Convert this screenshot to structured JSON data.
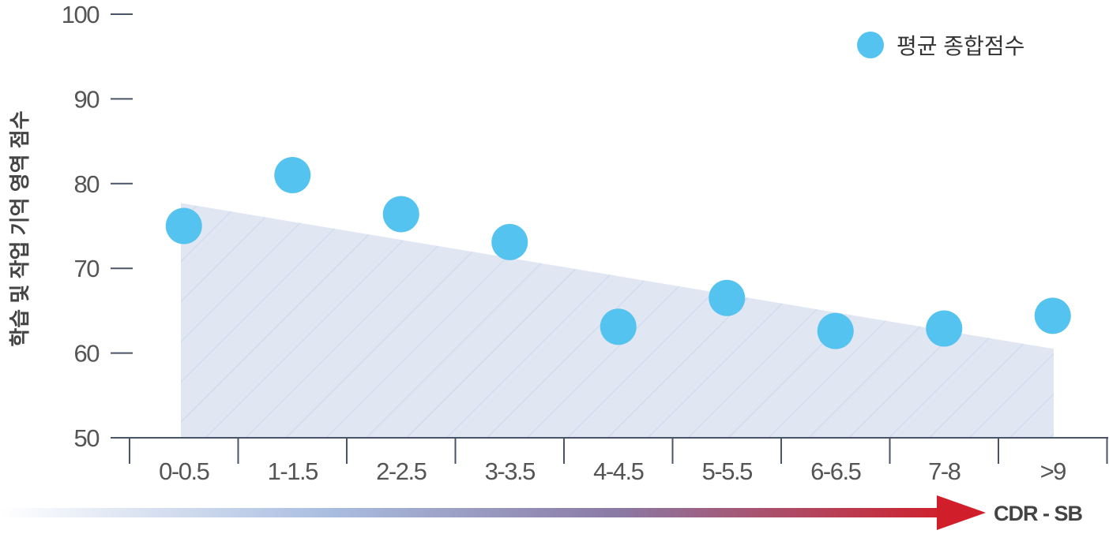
{
  "chart_data": {
    "type": "scatter",
    "categories": [
      "0-0.5",
      "1-1.5",
      "2-2.5",
      "3-3.5",
      "4-4.5",
      "5-5.5",
      "6-6.5",
      "7-8",
      ">9"
    ],
    "series": [
      {
        "name": "평균 종합점수",
        "values": [
          75.0,
          81.0,
          76.4,
          73.1,
          63.1,
          66.5,
          62.6,
          62.9,
          64.4
        ],
        "color": "#55c3ef"
      }
    ],
    "trend_area": {
      "start": 77.7,
      "end": 60.5,
      "color": "#e1e6f3",
      "hatch_color": "#c5d3ec"
    },
    "ylabel": "학습 및 작업 기억 영역 점수",
    "xlabel": "CDR - SB",
    "ylim": [
      50,
      100
    ],
    "yticks": [
      50,
      60,
      70,
      80,
      90,
      100
    ],
    "grid": false,
    "legend": "top-right",
    "arrow_gradient": [
      "#ffffff",
      "#a9bde0",
      "#8a7aa5",
      "#d01f2a"
    ]
  }
}
